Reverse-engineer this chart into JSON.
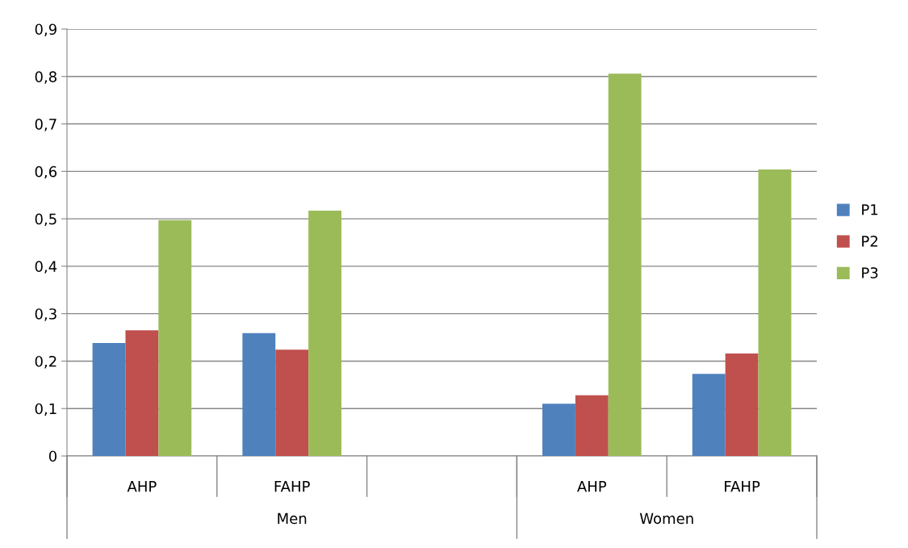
{
  "chart_data": {
    "type": "bar",
    "categories": [
      "AHP",
      "FAHP",
      null,
      "AHP",
      "FAHP"
    ],
    "annotations": [
      "Men",
      "Women"
    ],
    "series": [
      {
        "name": "P1",
        "color": "#4f81bd",
        "values": [
          0.238,
          0.259,
          null,
          0.11,
          0.173
        ]
      },
      {
        "name": "P2",
        "color": "#c0504d",
        "values": [
          0.265,
          0.224,
          null,
          0.128,
          0.216
        ]
      },
      {
        "name": "P3",
        "color": "#9bbb59",
        "values": [
          0.497,
          0.517,
          null,
          0.806,
          0.604
        ]
      }
    ],
    "ylim": [
      0,
      0.9
    ],
    "yticks": [
      0,
      {
        "value": 0.1,
        "label": "0,1"
      },
      {
        "value": 0.2,
        "label": "0,2"
      },
      {
        "value": 0.3,
        "label": "0,3"
      },
      {
        "value": 0.4,
        "label": "0,4"
      },
      {
        "value": 0.5,
        "label": "0,5"
      },
      {
        "value": 0.6,
        "label": "0,6"
      },
      {
        "value": 0.7,
        "label": "0,7"
      },
      {
        "value": 0.8,
        "label": "0,8"
      },
      {
        "value": 0.9,
        "label": "0,9"
      }
    ],
    "grid": "y",
    "legend": "right"
  }
}
